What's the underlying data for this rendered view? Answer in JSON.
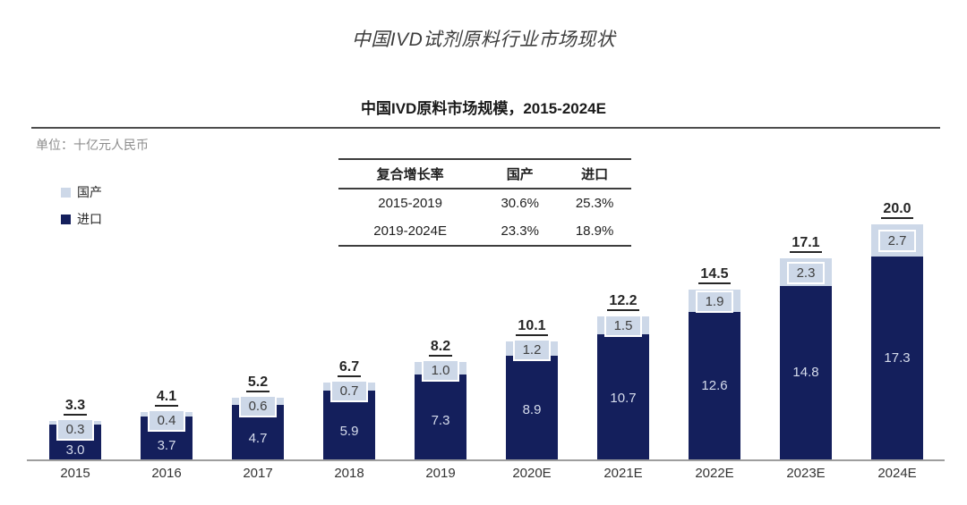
{
  "page": {
    "title": "中国IVD试剂原料行业市场现状"
  },
  "chart": {
    "title": "中国IVD原料市场规模，2015-2024E",
    "unit_label": "单位：十亿元人民币",
    "legend": [
      {
        "label": "国产",
        "color": "#CDD8E8"
      },
      {
        "label": "进口",
        "color": "#141F5C"
      }
    ]
  },
  "cagr_table": {
    "headers": [
      "复合增长率",
      "国产",
      "进口"
    ],
    "rows": [
      [
        "2015-2019",
        "30.6%",
        "25.3%"
      ],
      [
        "2019-2024E",
        "23.3%",
        "18.9%"
      ]
    ]
  },
  "chart_data": {
    "type": "bar",
    "stacked": true,
    "title": "中国IVD原料市场规模，2015-2024E",
    "ylabel": "十亿元人民币",
    "categories": [
      "2015",
      "2016",
      "2017",
      "2018",
      "2019",
      "2020E",
      "2021E",
      "2022E",
      "2023E",
      "2024E"
    ],
    "series": [
      {
        "name": "进口",
        "color": "#141F5C",
        "values": [
          3.0,
          3.7,
          4.7,
          5.9,
          7.3,
          8.9,
          10.7,
          12.6,
          14.8,
          17.3
        ]
      },
      {
        "name": "国产",
        "color": "#CDD8E8",
        "values": [
          0.3,
          0.4,
          0.6,
          0.7,
          1.0,
          1.2,
          1.5,
          1.9,
          2.3,
          2.7
        ]
      }
    ],
    "totals": [
      3.3,
      4.1,
      5.2,
      6.7,
      8.2,
      10.1,
      12.2,
      14.5,
      17.1,
      20.0
    ],
    "ylim": [
      0,
      21
    ],
    "grid": false,
    "legend_position": "left",
    "colors": {
      "axis": "#9e9e9e",
      "total_label": "#262626",
      "import_value_text": "#d6dcec",
      "domestic_value_text": "#3f3f3f"
    }
  }
}
